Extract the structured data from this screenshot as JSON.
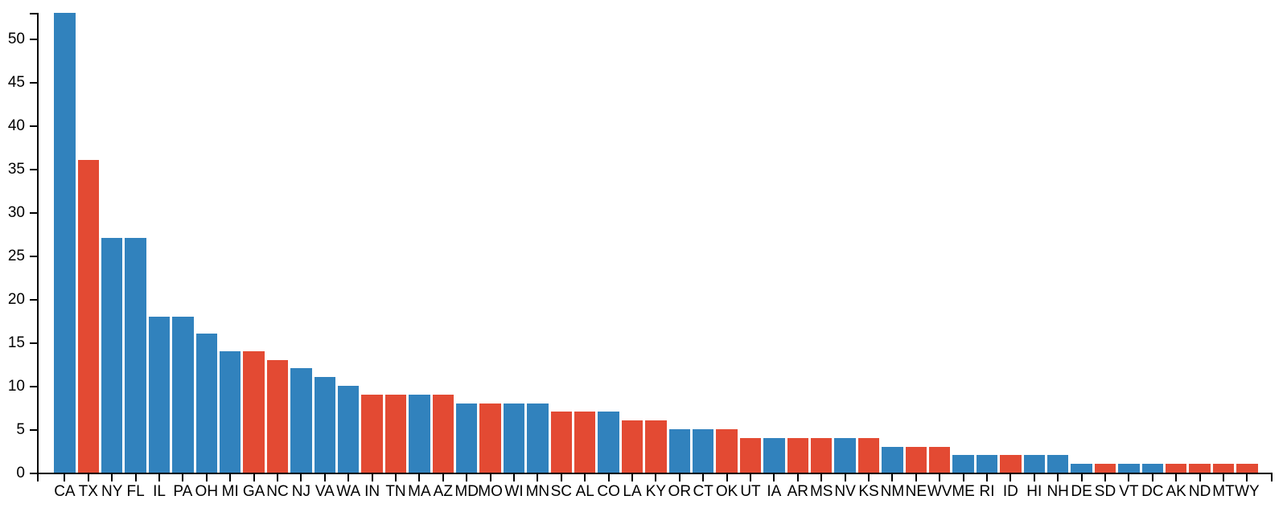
{
  "chart_data": {
    "type": "bar",
    "title": "",
    "xlabel": "",
    "ylabel": "",
    "ylim": [
      0,
      53
    ],
    "yticks": [
      0,
      5,
      10,
      15,
      20,
      25,
      30,
      35,
      40,
      45,
      50
    ],
    "grid": false,
    "legend_position": "none",
    "background_color": "#ffffff",
    "axis_color": "#000000",
    "palette": {
      "blue": "#3182bd",
      "red": "#e34a33"
    },
    "categories": [
      "CA",
      "TX",
      "NY",
      "FL",
      "IL",
      "PA",
      "OH",
      "MI",
      "GA",
      "NC",
      "NJ",
      "VA",
      "WA",
      "IN",
      "TN",
      "MA",
      "AZ",
      "MD",
      "MO",
      "WI",
      "MN",
      "SC",
      "AL",
      "CO",
      "LA",
      "KY",
      "OR",
      "CT",
      "OK",
      "UT",
      "IA",
      "AR",
      "MS",
      "NV",
      "KS",
      "NM",
      "NE",
      "WV",
      "ME",
      "RI",
      "ID",
      "HI",
      "NH",
      "DE",
      "SD",
      "VT",
      "DC",
      "AK",
      "ND",
      "MT",
      "WY"
    ],
    "bars": [
      {
        "state": "CA",
        "value": 53,
        "color": "blue"
      },
      {
        "state": "TX",
        "value": 36,
        "color": "red"
      },
      {
        "state": "NY",
        "value": 27,
        "color": "blue"
      },
      {
        "state": "FL",
        "value": 27,
        "color": "blue"
      },
      {
        "state": "IL",
        "value": 18,
        "color": "blue"
      },
      {
        "state": "PA",
        "value": 18,
        "color": "blue"
      },
      {
        "state": "OH",
        "value": 16,
        "color": "blue"
      },
      {
        "state": "MI",
        "value": 14,
        "color": "blue"
      },
      {
        "state": "GA",
        "value": 14,
        "color": "red"
      },
      {
        "state": "NC",
        "value": 13,
        "color": "red"
      },
      {
        "state": "NJ",
        "value": 12,
        "color": "blue"
      },
      {
        "state": "VA",
        "value": 11,
        "color": "blue"
      },
      {
        "state": "WA",
        "value": 10,
        "color": "blue"
      },
      {
        "state": "IN",
        "value": 9,
        "color": "red"
      },
      {
        "state": "TN",
        "value": 9,
        "color": "red"
      },
      {
        "state": "MA",
        "value": 9,
        "color": "blue"
      },
      {
        "state": "AZ",
        "value": 9,
        "color": "red"
      },
      {
        "state": "MD",
        "value": 8,
        "color": "blue"
      },
      {
        "state": "MO",
        "value": 8,
        "color": "red"
      },
      {
        "state": "WI",
        "value": 8,
        "color": "blue"
      },
      {
        "state": "MN",
        "value": 8,
        "color": "blue"
      },
      {
        "state": "SC",
        "value": 7,
        "color": "red"
      },
      {
        "state": "AL",
        "value": 7,
        "color": "red"
      },
      {
        "state": "CO",
        "value": 7,
        "color": "blue"
      },
      {
        "state": "LA",
        "value": 6,
        "color": "red"
      },
      {
        "state": "KY",
        "value": 6,
        "color": "red"
      },
      {
        "state": "OR",
        "value": 5,
        "color": "blue"
      },
      {
        "state": "CT",
        "value": 5,
        "color": "blue"
      },
      {
        "state": "OK",
        "value": 5,
        "color": "red"
      },
      {
        "state": "UT",
        "value": 4,
        "color": "red"
      },
      {
        "state": "IA",
        "value": 4,
        "color": "blue"
      },
      {
        "state": "AR",
        "value": 4,
        "color": "red"
      },
      {
        "state": "MS",
        "value": 4,
        "color": "red"
      },
      {
        "state": "NV",
        "value": 4,
        "color": "blue"
      },
      {
        "state": "KS",
        "value": 4,
        "color": "red"
      },
      {
        "state": "NM",
        "value": 3,
        "color": "blue"
      },
      {
        "state": "NE",
        "value": 3,
        "color": "red"
      },
      {
        "state": "WV",
        "value": 3,
        "color": "red"
      },
      {
        "state": "ME",
        "value": 2,
        "color": "blue"
      },
      {
        "state": "RI",
        "value": 2,
        "color": "blue"
      },
      {
        "state": "ID",
        "value": 2,
        "color": "red"
      },
      {
        "state": "HI",
        "value": 2,
        "color": "blue"
      },
      {
        "state": "NH",
        "value": 2,
        "color": "blue"
      },
      {
        "state": "DE",
        "value": 1,
        "color": "blue"
      },
      {
        "state": "SD",
        "value": 1,
        "color": "red"
      },
      {
        "state": "VT",
        "value": 1,
        "color": "blue"
      },
      {
        "state": "DC",
        "value": 1,
        "color": "blue"
      },
      {
        "state": "AK",
        "value": 1,
        "color": "red"
      },
      {
        "state": "ND",
        "value": 1,
        "color": "red"
      },
      {
        "state": "MT",
        "value": 1,
        "color": "red"
      },
      {
        "state": "WY",
        "value": 1,
        "color": "red"
      }
    ]
  }
}
